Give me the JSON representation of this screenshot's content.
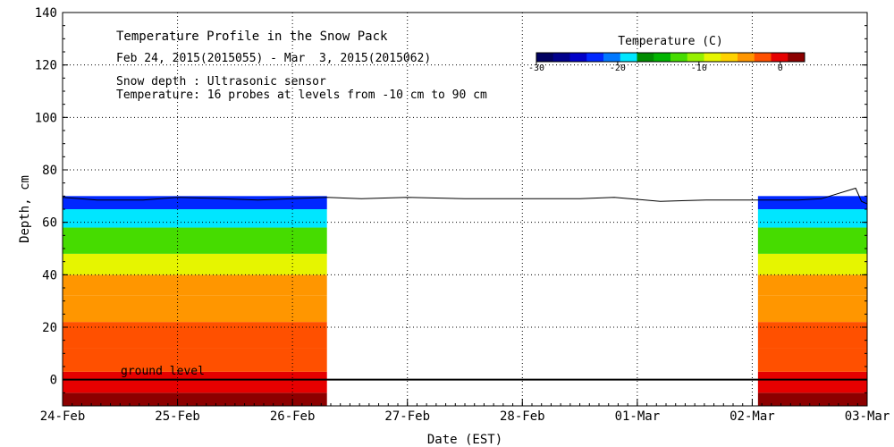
{
  "chart_data": {
    "type": "heatmap",
    "title": "Temperature Profile in the Snow Pack",
    "subtitle": "Feb 24, 2015(2015055) - Mar  3, 2015(2015062)",
    "notes": [
      "Snow depth : Ultrasonic sensor",
      "Temperature: 16 probes at levels from -10 cm to 90 cm"
    ],
    "annotation": "ground level",
    "xlabel": "Date (EST)",
    "ylabel": "Depth, cm",
    "ylim": [
      -10,
      140
    ],
    "y_ticks": [
      0,
      20,
      40,
      60,
      80,
      100,
      120,
      140
    ],
    "x_ticks": [
      "24-Feb",
      "25-Feb",
      "26-Feb",
      "27-Feb",
      "28-Feb",
      "01-Mar",
      "02-Mar",
      "03-Mar"
    ],
    "xlim_days": [
      0,
      7
    ],
    "legend": {
      "title": "Temperature (C)",
      "ticks": [
        -30,
        -20,
        -10,
        0
      ],
      "range": [
        -30,
        3
      ],
      "colors": [
        "#000060",
        "#00008c",
        "#0000c8",
        "#0028ff",
        "#0078ff",
        "#00e6ff",
        "#008c00",
        "#00b400",
        "#46dc00",
        "#96f000",
        "#e6f500",
        "#ffd200",
        "#ff9600",
        "#ff5000",
        "#e60000",
        "#8c0000"
      ]
    },
    "series": [
      {
        "type": "line",
        "day": [
          0,
          0.3,
          0.7,
          1.0,
          1.4,
          1.7,
          2.0,
          2.3,
          2.6,
          3.0,
          3.5,
          4.0,
          4.5,
          4.8,
          5.2,
          5.6,
          6.0,
          6.4,
          6.6,
          6.9,
          6.95,
          7.0
        ],
        "depth_cm": [
          69.5,
          68.5,
          68.5,
          69.5,
          69,
          68.5,
          69,
          69.5,
          69,
          69.5,
          69,
          69,
          69,
          69.5,
          68,
          68.5,
          68.5,
          68.5,
          69,
          73,
          68,
          67
        ]
      }
    ],
    "temperature_field": {
      "periods_with_data_days": [
        [
          0,
          2.3
        ],
        [
          6.05,
          7.0
        ]
      ],
      "gap_days": [
        2.3,
        6.05
      ],
      "depth_bands": [
        {
          "from_cm": -10,
          "to_cm": -5,
          "temp_c": 1.5
        },
        {
          "from_cm": -5,
          "to_cm": 3,
          "temp_c": 0
        },
        {
          "from_cm": 3,
          "to_cm": 12,
          "temp_c": -1.5
        },
        {
          "from_cm": 12,
          "to_cm": 22,
          "temp_c": -2.5
        },
        {
          "from_cm": 22,
          "to_cm": 32,
          "temp_c": -3.5
        },
        {
          "from_cm": 32,
          "to_cm": 40,
          "temp_c": -5
        },
        {
          "from_cm": 40,
          "to_cm": 48,
          "temp_c": -8
        },
        {
          "from_cm": 48,
          "to_cm": 58,
          "temp_c": -12
        },
        {
          "from_cm": 58,
          "to_cm": 65,
          "temp_c": -18
        },
        {
          "from_cm": 65,
          "to_cm": 70,
          "temp_c": -22
        }
      ]
    }
  }
}
